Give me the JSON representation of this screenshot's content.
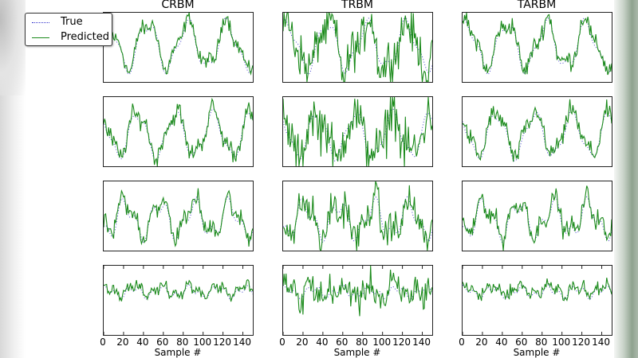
{
  "colors": {
    "true_line": "#4444cc",
    "predicted_line": "#1a8a1a",
    "axes": "#222222"
  },
  "legend": {
    "items": [
      {
        "label": "True",
        "style": "dotted",
        "color": "#4444cc"
      },
      {
        "label": "Predicted",
        "style": "solid",
        "color": "#1a8a1a"
      }
    ]
  },
  "columns": [
    {
      "title": "CRBM",
      "xlabel": "Sample #"
    },
    {
      "title": "TRBM",
      "xlabel": "Sample #"
    },
    {
      "title": "TARBM",
      "xlabel": "Sample #"
    }
  ],
  "x_ticks": [
    "0",
    "20",
    "40",
    "60",
    "80",
    "100",
    "120",
    "140"
  ],
  "chart_data": {
    "type": "line",
    "title": "",
    "layout": "4 rows x 3 columns small multiples",
    "column_titles": [
      "CRBM",
      "TRBM",
      "TARBM"
    ],
    "xlabel": "Sample #",
    "ylabel": "",
    "xlim": [
      0,
      150
    ],
    "x_ticks": [
      0,
      20,
      40,
      60,
      80,
      100,
      120,
      140
    ],
    "y_ticks": [],
    "grid": false,
    "legend": {
      "entries": [
        "True",
        "Predicted"
      ],
      "position": "upper left (outside, top-left of first panel)"
    },
    "rows": [
      {
        "description": "Row 1: true signal smooth oscillation (~4 cycles over 150 samples), high amplitude",
        "true": {
          "period": 40,
          "phase": 0.9,
          "amp": 0.32,
          "offset": 0.52,
          "harm": 0.1
        },
        "predicted_noise": {
          "CRBM": 0.1,
          "TRBM": 0.28,
          "TARBM": 0.12
        }
      },
      {
        "description": "Row 2: true signal oscillation (~4 cycles), lower baseline",
        "true": {
          "period": 38,
          "phase": 2.2,
          "amp": 0.3,
          "offset": 0.45,
          "harm": 0.08
        },
        "predicted_noise": {
          "CRBM": 0.12,
          "TRBM": 0.32,
          "TARBM": 0.12
        }
      },
      {
        "description": "Row 3: peaks at ~0-10, 40, 65, 100, 145; mid baseline",
        "true": {
          "period": 35,
          "phase": 4.0,
          "amp": 0.22,
          "offset": 0.45,
          "harm": 0.12
        },
        "predicted_noise": {
          "CRBM": 0.12,
          "TRBM": 0.22,
          "TARBM": 0.12
        }
      },
      {
        "description": "Row 4: small amplitude fluctuation around upper-middle",
        "true": {
          "period": 28,
          "phase": 1.0,
          "amp": 0.06,
          "offset": 0.62,
          "harm": 0.05
        },
        "predicted_noise": {
          "CRBM": 0.07,
          "TRBM": 0.2,
          "TARBM": 0.08
        }
      }
    ],
    "series": [
      {
        "name": "True",
        "style": "dotted",
        "color": "#4444cc"
      },
      {
        "name": "Predicted",
        "style": "solid",
        "color": "#1a8a1a"
      }
    ]
  }
}
